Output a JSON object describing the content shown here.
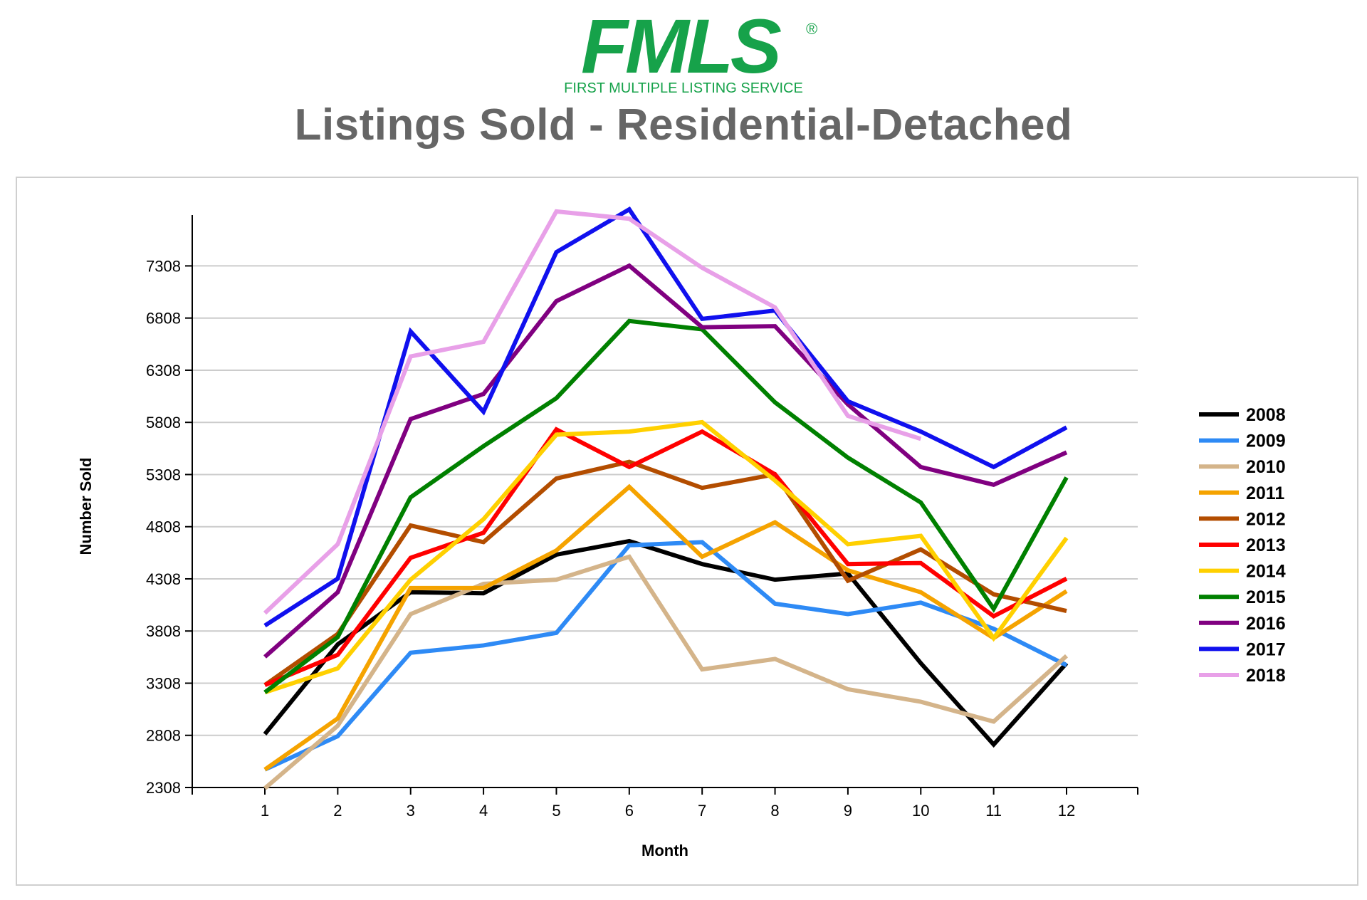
{
  "brand": {
    "logo_text": "FMLS",
    "registered_mark": "®",
    "tagline": "FIRST MULTIPLE LISTING SERVICE",
    "logo_color": "#16a24a"
  },
  "chart_data": {
    "type": "line",
    "title": "Listings Sold - Residential-Detached",
    "xlabel": "Month",
    "ylabel": "Number Sold",
    "categories": [
      "1",
      "2",
      "3",
      "4",
      "5",
      "6",
      "7",
      "8",
      "9",
      "10",
      "11",
      "12"
    ],
    "ylim": [
      2308,
      7700
    ],
    "yticks": [
      2308,
      2808,
      3308,
      3808,
      4308,
      4808,
      5308,
      5808,
      6308,
      6808,
      7308
    ],
    "grid": true,
    "legend_position": "right",
    "series": [
      {
        "name": "2008",
        "color": "#000000",
        "values": [
          2820,
          3680,
          4180,
          4170,
          4540,
          4670,
          4450,
          4300,
          4360,
          3500,
          2720,
          3500
        ]
      },
      {
        "name": "2009",
        "color": "#2e8af5",
        "values": [
          2480,
          2800,
          3600,
          3670,
          3790,
          4630,
          4660,
          4070,
          3970,
          4080,
          3830,
          3480
        ]
      },
      {
        "name": "2010",
        "color": "#d4b48a",
        "values": [
          2300,
          2900,
          3970,
          4260,
          4300,
          4520,
          3440,
          3540,
          3250,
          3130,
          2940,
          3570
        ]
      },
      {
        "name": "2011",
        "color": "#f5a300",
        "values": [
          2480,
          2970,
          4220,
          4220,
          4580,
          5190,
          4520,
          4850,
          4390,
          4180,
          3740,
          4190
        ]
      },
      {
        "name": "2012",
        "color": "#b34d00",
        "values": [
          3290,
          3780,
          4820,
          4660,
          5270,
          5430,
          5180,
          5310,
          4290,
          4590,
          4160,
          4000
        ]
      },
      {
        "name": "2013",
        "color": "#ff0000",
        "values": [
          3290,
          3580,
          4510,
          4750,
          5740,
          5380,
          5720,
          5310,
          4450,
          4460,
          3950,
          4310
        ]
      },
      {
        "name": "2014",
        "color": "#ffd000",
        "values": [
          3220,
          3450,
          4300,
          4880,
          5690,
          5720,
          5810,
          5250,
          4640,
          4720,
          3740,
          4700
        ]
      },
      {
        "name": "2015",
        "color": "#008000",
        "values": [
          3220,
          3750,
          5090,
          5580,
          6040,
          6780,
          6700,
          6000,
          5470,
          5040,
          4020,
          5280
        ]
      },
      {
        "name": "2016",
        "color": "#800080",
        "values": [
          3560,
          4180,
          5840,
          6080,
          6970,
          7310,
          6720,
          6730,
          5980,
          5380,
          5210,
          5520
        ]
      },
      {
        "name": "2017",
        "color": "#1010ee",
        "values": [
          3860,
          4310,
          6680,
          5910,
          7440,
          7850,
          6800,
          6880,
          6010,
          5720,
          5380,
          5760
        ]
      },
      {
        "name": "2018",
        "color": "#e8a0e8",
        "values": [
          3980,
          4640,
          6440,
          6580,
          7830,
          7760,
          7290,
          6910,
          5870,
          5650,
          null,
          null
        ]
      }
    ]
  }
}
